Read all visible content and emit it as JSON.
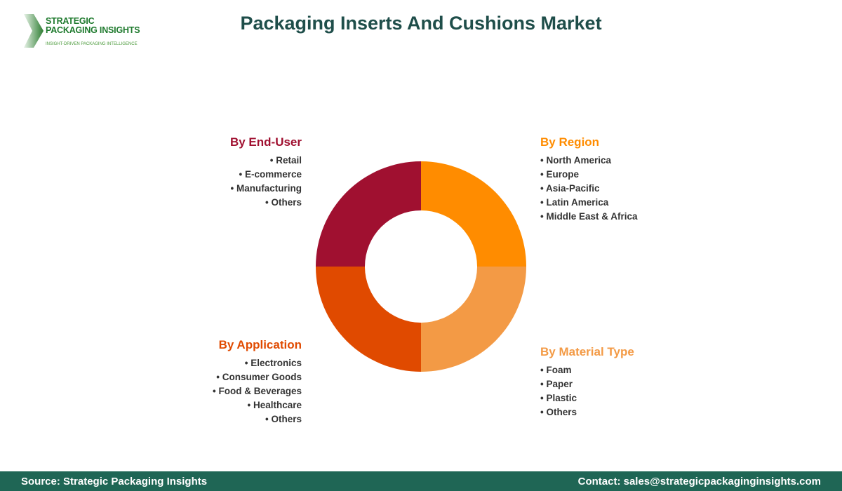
{
  "logo": {
    "line1": "STRATEGIC",
    "line2": "PACKAGING INSIGHTS",
    "tagline": "INSIGHT-DRIVEN PACKAGING INTELLIGENCE"
  },
  "chart_data": {
    "type": "pie",
    "title": "Packaging Inserts And Cushions Market",
    "slices": [
      {
        "label": "By Region",
        "value": 25,
        "color": "#FF8C00",
        "items": [
          "North America",
          "Europe",
          "Asia-Pacific",
          "Latin America",
          "Middle East & Africa"
        ]
      },
      {
        "label": "By Material Type",
        "value": 25,
        "color": "#F39A45",
        "items": [
          "Foam",
          "Paper",
          "Plastic",
          "Others"
        ]
      },
      {
        "label": "By Application",
        "value": 25,
        "color": "#E04A00",
        "items": [
          "Electronics",
          "Consumer Goods",
          "Food & Beverages",
          "Healthcare",
          "Others"
        ]
      },
      {
        "label": "By End-User",
        "value": 25,
        "color": "#A01030",
        "items": [
          "Retail",
          "E-commerce",
          "Manufacturing",
          "Others"
        ]
      }
    ]
  },
  "footer": {
    "source": "Source: Strategic Packaging Insights",
    "contact": "Contact: sales@strategicpackaginginsights.com"
  }
}
